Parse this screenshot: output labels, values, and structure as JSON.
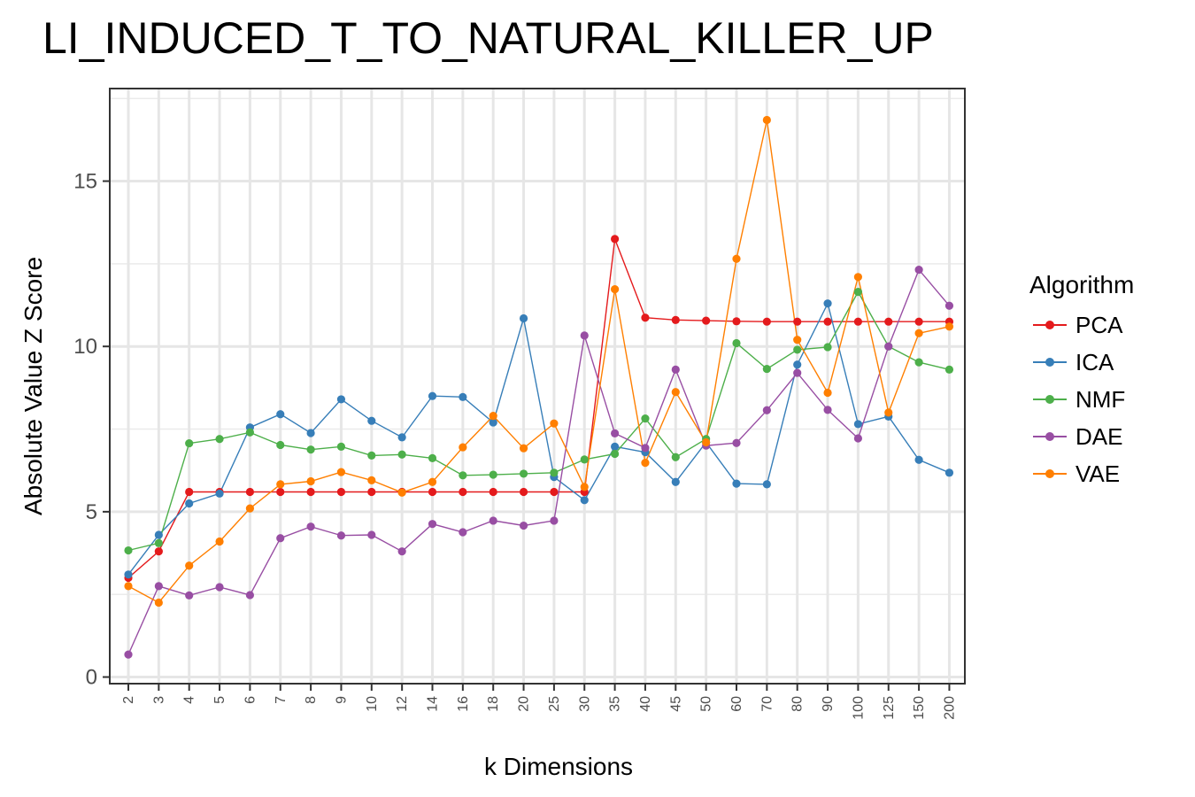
{
  "chart_data": {
    "type": "line",
    "title": "LI_INDUCED_T_TO_NATURAL_KILLER_UP",
    "xlabel": "k Dimensions",
    "ylabel": "Absolute Value Z Score",
    "categories": [
      "2",
      "3",
      "4",
      "5",
      "6",
      "7",
      "8",
      "9",
      "10",
      "12",
      "14",
      "16",
      "18",
      "20",
      "25",
      "30",
      "35",
      "40",
      "45",
      "50",
      "60",
      "70",
      "80",
      "90",
      "100",
      "125",
      "150",
      "200"
    ],
    "yticks": [
      0,
      5,
      10,
      15
    ],
    "ylim": [
      -0.2,
      17.8
    ],
    "grid": true,
    "legend_title": "Algorithm",
    "legend_position": "right",
    "series": [
      {
        "name": "PCA",
        "color": "#E41A1C",
        "values": [
          3.0,
          3.8,
          5.6,
          5.6,
          5.6,
          5.6,
          5.6,
          5.6,
          5.6,
          5.6,
          5.6,
          5.6,
          5.6,
          5.6,
          5.6,
          5.6,
          13.25,
          10.87,
          10.8,
          10.78,
          10.76,
          10.75,
          10.75,
          10.75,
          10.75,
          10.75,
          10.75,
          10.75
        ]
      },
      {
        "name": "ICA",
        "color": "#377EB8",
        "values": [
          3.1,
          4.3,
          5.25,
          5.55,
          7.55,
          7.95,
          7.38,
          8.4,
          7.75,
          7.25,
          8.5,
          8.47,
          7.7,
          10.85,
          6.05,
          5.35,
          6.97,
          6.8,
          5.9,
          7.1,
          5.85,
          5.83,
          9.45,
          11.3,
          7.65,
          7.88,
          6.57,
          6.18
        ]
      },
      {
        "name": "NMF",
        "color": "#4DAF4A",
        "values": [
          3.83,
          4.05,
          7.07,
          7.2,
          7.4,
          7.02,
          6.88,
          6.97,
          6.7,
          6.73,
          6.62,
          6.1,
          6.12,
          6.15,
          6.18,
          6.58,
          6.75,
          7.82,
          6.65,
          7.2,
          10.1,
          9.32,
          9.9,
          9.98,
          11.65,
          10.0,
          9.52,
          9.3
        ]
      },
      {
        "name": "DAE",
        "color": "#984EA3",
        "values": [
          0.68,
          2.75,
          2.47,
          2.72,
          2.48,
          4.2,
          4.55,
          4.28,
          4.3,
          3.8,
          4.63,
          4.38,
          4.73,
          4.58,
          4.73,
          10.33,
          7.37,
          6.93,
          9.3,
          7.0,
          7.08,
          8.07,
          9.2,
          8.08,
          7.22,
          10.0,
          12.32,
          11.23
        ]
      },
      {
        "name": "VAE",
        "color": "#FF7F00",
        "values": [
          2.75,
          2.25,
          3.37,
          4.1,
          5.1,
          5.83,
          5.92,
          6.2,
          5.95,
          5.58,
          5.9,
          6.95,
          7.9,
          6.92,
          7.67,
          5.75,
          11.73,
          6.48,
          8.62,
          7.1,
          12.65,
          16.85,
          10.2,
          8.6,
          12.1,
          8.0,
          10.4,
          10.6
        ]
      }
    ]
  }
}
